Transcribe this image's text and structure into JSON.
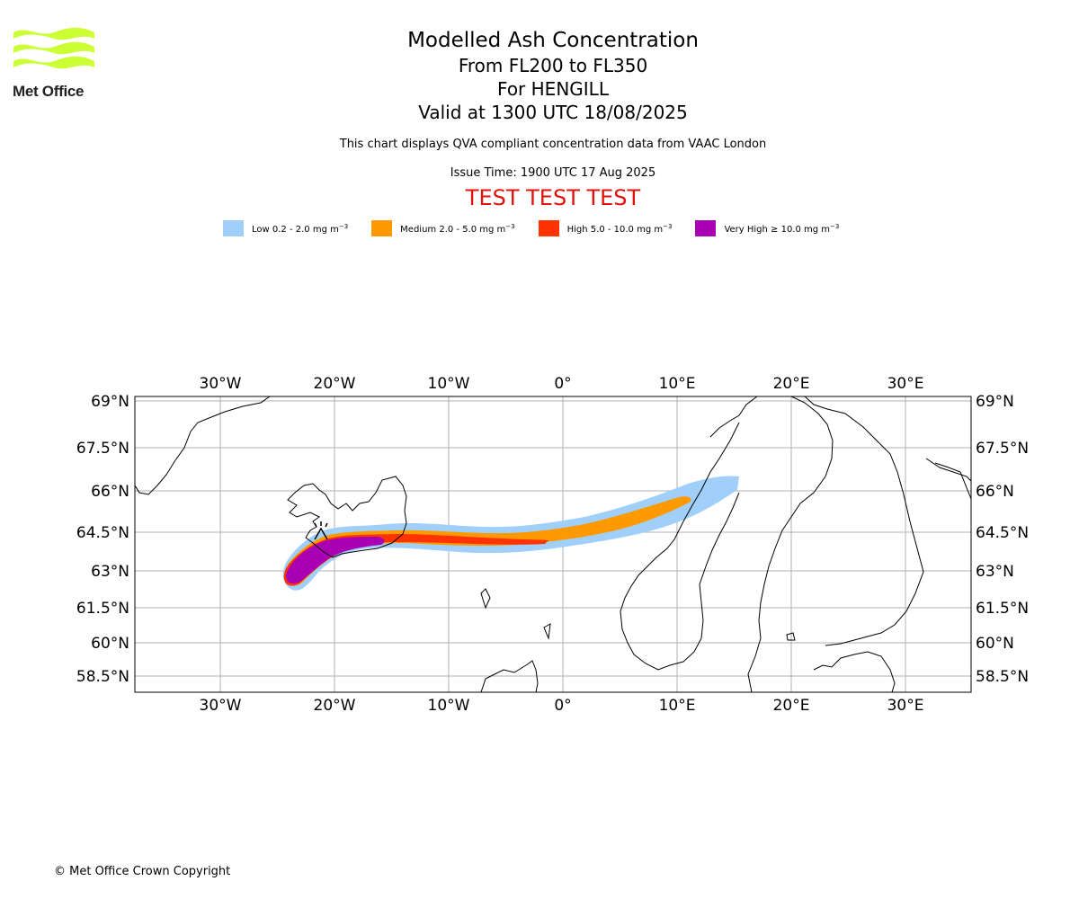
{
  "logo": {
    "text": "Met Office",
    "color": "#ccff33"
  },
  "titles": {
    "line1": "Modelled Ash Concentration",
    "line2": "From FL200 to FL350",
    "line3": "For HENGILL",
    "line4": "Valid at 1300 UTC 18/08/2025"
  },
  "subtitle": "This chart displays QVA compliant concentration data from VAAC London",
  "issue_time": "Issue Time: 1900 UTC 17 Aug 2025",
  "test_banner": "TEST TEST TEST",
  "legend": [
    {
      "label": "Low 0.2 - 2.0 mg m",
      "sup": "−3",
      "color": "#a0d0fa"
    },
    {
      "label": "Medium 2.0 - 5.0 mg m",
      "sup": "−3",
      "color": "#ff9900"
    },
    {
      "label": "High 5.0 - 10.0 mg m",
      "sup": "−3",
      "color": "#ff3300"
    },
    {
      "label": "Very High  ≥  10.0 mg m",
      "sup": "−3",
      "color": "#aa00b4"
    }
  ],
  "map": {
    "lon_labels": [
      "30°W",
      "20°W",
      "10°W",
      "0°",
      "10°E",
      "20°E",
      "30°E"
    ],
    "lat_labels": [
      "69°N",
      "67.5°N",
      "66°N",
      "64.5°N",
      "63°N",
      "61.5°N",
      "60°N",
      "58.5°N"
    ],
    "grid": true
  },
  "copyright": "© Met Office Crown Copyright"
}
